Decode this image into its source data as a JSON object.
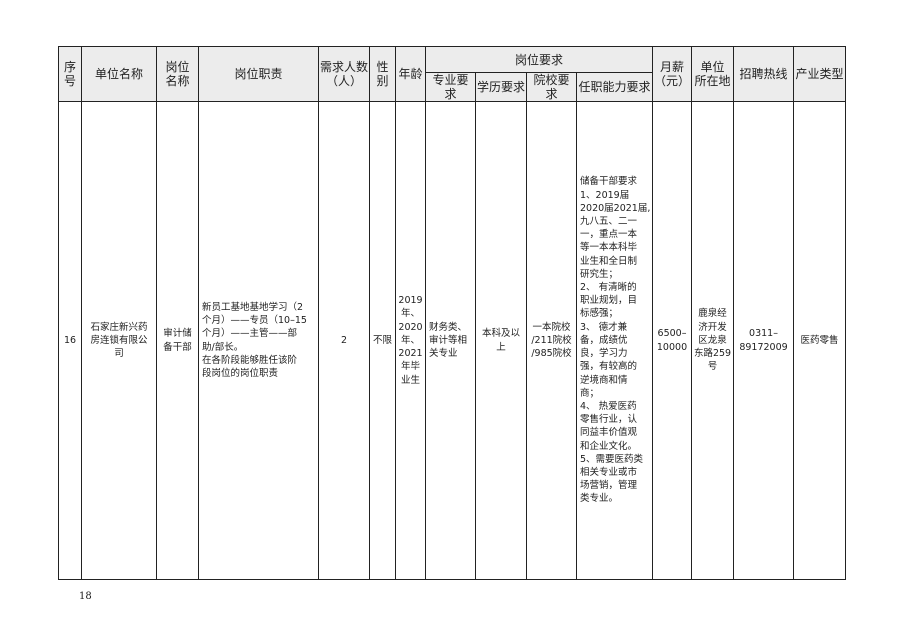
{
  "headers": {
    "no": "序号",
    "company": "单位名称",
    "position": "岗位\n名称",
    "duties": "岗位职责",
    "count": "需求人数\n（人）",
    "gender": "性\n别",
    "age": "年龄",
    "requirements": "岗位要求",
    "major": "专业要求",
    "education": "学历要求",
    "school": "院校要求",
    "ability": "任职能力要求",
    "salary": "月薪\n（元）",
    "location": "单位\n所在地",
    "hotline": "招聘热线",
    "industry": "产业类型"
  },
  "row": {
    "no": "16",
    "company": "石家庄新兴药\n房连锁有限公\n司",
    "position": "审计储\n备干部",
    "duties": "新员工基地基地学习（2\n个月）——专员（10–15\n个月）——主管——部\n助/部长。\n在各阶段能够胜任该阶\n段岗位的岗位职责",
    "count": "2",
    "gender": "不限",
    "age": "2019\n年、\n2020\n年、\n2021\n年毕\n业生",
    "major": "财务类、\n审计等相\n关专业",
    "education": "本科及以\n上",
    "school": "一本院校\n/211院校\n/985院校",
    "ability": "储备干部要求\n1、2019届\n2020届2021届,\n九八五、二一\n一，重点一本\n等一本本科毕\n业生和全日制\n研究生；\n2、 有清晰的\n职业规划，目\n标感强；\n3、 德才兼\n备，成绩优\n良，学习力\n强，有较高的\n逆境商和情\n商；\n4、 热爱医药\n零售行业，认\n同益丰价值观\n和企业文化。\n5、需要医药类\n相关专业或市\n场营销，管理\n类专业。",
    "salary": "6500–\n10000",
    "location": "鹿泉经\n济开发\n区龙泉\n东路259\n号",
    "hotline": "0311–\n89172009",
    "industry": "医药零售"
  },
  "page_number": "18"
}
